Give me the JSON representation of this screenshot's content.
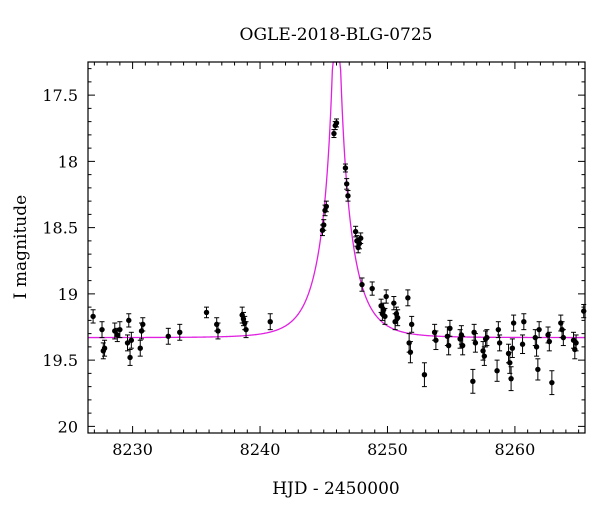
{
  "chart_data": {
    "type": "scatter",
    "title": "OGLE-2018-BLG-0725",
    "xlabel": "HJD - 2450000",
    "ylabel": "I magnitude",
    "xlim": [
      8226.5,
      8265.5
    ],
    "ylim": [
      17.25,
      20.05
    ],
    "y_inverted": true,
    "grid": false,
    "xticks": [
      8230,
      8240,
      8250,
      8260
    ],
    "xtick_labels": [
      "8230",
      "8240",
      "8250",
      "8260"
    ],
    "yticks": [
      17.5,
      18,
      18.5,
      19,
      19.5,
      20
    ],
    "ytick_labels": [
      "17.5",
      "18",
      "18.5",
      "19",
      "19.5",
      "20"
    ],
    "model": {
      "name": "",
      "color": "#e020e0",
      "t0": 8246.0,
      "tE": 2.25,
      "u0": 0.062,
      "baseline_mag": 19.33,
      "blend_fraction": 1.0
    },
    "series": [
      {
        "name": "",
        "color": "#000000",
        "points": [
          [
            8226.9,
            19.17,
            0.05
          ],
          [
            8227.6,
            19.27,
            0.06
          ],
          [
            8227.7,
            19.43,
            0.06
          ],
          [
            8227.8,
            19.41,
            0.06
          ],
          [
            8228.6,
            19.28,
            0.06
          ],
          [
            8228.8,
            19.31,
            0.05
          ],
          [
            8229.0,
            19.27,
            0.06
          ],
          [
            8229.6,
            19.37,
            0.06
          ],
          [
            8229.7,
            19.2,
            0.05
          ],
          [
            8229.8,
            19.48,
            0.06
          ],
          [
            8229.9,
            19.35,
            0.06
          ],
          [
            8230.6,
            19.41,
            0.06
          ],
          [
            8230.7,
            19.28,
            0.06
          ],
          [
            8230.8,
            19.23,
            0.05
          ],
          [
            8232.8,
            19.32,
            0.06
          ],
          [
            8233.7,
            19.29,
            0.06
          ],
          [
            8235.8,
            19.14,
            0.04
          ],
          [
            8236.6,
            19.23,
            0.05
          ],
          [
            8236.7,
            19.28,
            0.06
          ],
          [
            8238.6,
            19.16,
            0.06
          ],
          [
            8238.7,
            19.19,
            0.05
          ],
          [
            8238.8,
            19.22,
            0.05
          ],
          [
            8238.9,
            19.27,
            0.06
          ],
          [
            8240.8,
            19.21,
            0.06
          ],
          [
            8244.9,
            18.52,
            0.04
          ],
          [
            8245.0,
            18.48,
            0.04
          ],
          [
            8245.1,
            18.37,
            0.04
          ],
          [
            8245.2,
            18.34,
            0.04
          ],
          [
            8245.8,
            17.79,
            0.03
          ],
          [
            8245.9,
            17.73,
            0.03
          ],
          [
            8246.0,
            17.71,
            0.03
          ],
          [
            8246.7,
            18.05,
            0.03
          ],
          [
            8246.8,
            18.17,
            0.04
          ],
          [
            8246.9,
            18.26,
            0.04
          ],
          [
            8247.5,
            18.53,
            0.04
          ],
          [
            8247.6,
            18.6,
            0.04
          ],
          [
            8247.7,
            18.65,
            0.04
          ],
          [
            8247.8,
            18.62,
            0.04
          ],
          [
            8247.9,
            18.58,
            0.04
          ],
          [
            8248.0,
            18.93,
            0.05
          ],
          [
            8248.8,
            18.96,
            0.05
          ],
          [
            8249.5,
            19.09,
            0.05
          ],
          [
            8249.6,
            19.15,
            0.05
          ],
          [
            8249.7,
            19.12,
            0.05
          ],
          [
            8249.8,
            19.17,
            0.06
          ],
          [
            8249.9,
            19.02,
            0.05
          ],
          [
            8250.5,
            19.07,
            0.05
          ],
          [
            8250.6,
            19.21,
            0.06
          ],
          [
            8250.7,
            19.15,
            0.05
          ],
          [
            8250.8,
            19.18,
            0.06
          ],
          [
            8251.6,
            19.03,
            0.06
          ],
          [
            8251.7,
            19.37,
            0.07
          ],
          [
            8251.8,
            19.44,
            0.08
          ],
          [
            8251.9,
            19.23,
            0.06
          ],
          [
            8252.9,
            19.61,
            0.09
          ],
          [
            8253.7,
            19.29,
            0.06
          ],
          [
            8253.8,
            19.35,
            0.07
          ],
          [
            8254.7,
            19.32,
            0.07
          ],
          [
            8254.8,
            19.39,
            0.07
          ],
          [
            8254.9,
            19.26,
            0.06
          ],
          [
            8255.7,
            19.34,
            0.07
          ],
          [
            8255.8,
            19.31,
            0.07
          ],
          [
            8255.9,
            19.39,
            0.07
          ],
          [
            8256.7,
            19.66,
            0.09
          ],
          [
            8256.8,
            19.29,
            0.06
          ],
          [
            8256.9,
            19.37,
            0.07
          ],
          [
            8257.5,
            19.43,
            0.07
          ],
          [
            8257.6,
            19.47,
            0.07
          ],
          [
            8257.7,
            19.34,
            0.06
          ],
          [
            8257.8,
            19.33,
            0.06
          ],
          [
            8258.6,
            19.58,
            0.08
          ],
          [
            8258.7,
            19.27,
            0.06
          ],
          [
            8258.8,
            19.37,
            0.06
          ],
          [
            8259.5,
            19.45,
            0.07
          ],
          [
            8259.6,
            19.52,
            0.08
          ],
          [
            8259.7,
            19.64,
            0.09
          ],
          [
            8259.8,
            19.41,
            0.07
          ],
          [
            8259.9,
            19.22,
            0.06
          ],
          [
            8260.6,
            19.38,
            0.07
          ],
          [
            8260.7,
            19.21,
            0.06
          ],
          [
            8261.6,
            19.33,
            0.06
          ],
          [
            8261.7,
            19.4,
            0.07
          ],
          [
            8261.8,
            19.57,
            0.08
          ],
          [
            8261.9,
            19.27,
            0.06
          ],
          [
            8262.6,
            19.31,
            0.06
          ],
          [
            8262.7,
            19.36,
            0.07
          ],
          [
            8262.9,
            19.67,
            0.09
          ],
          [
            8263.6,
            19.22,
            0.06
          ],
          [
            8263.7,
            19.27,
            0.06
          ],
          [
            8263.8,
            19.33,
            0.06
          ],
          [
            8264.6,
            19.35,
            0.06
          ],
          [
            8264.7,
            19.42,
            0.07
          ],
          [
            8264.8,
            19.37,
            0.06
          ],
          [
            8265.4,
            19.13,
            0.05
          ]
        ]
      }
    ]
  }
}
